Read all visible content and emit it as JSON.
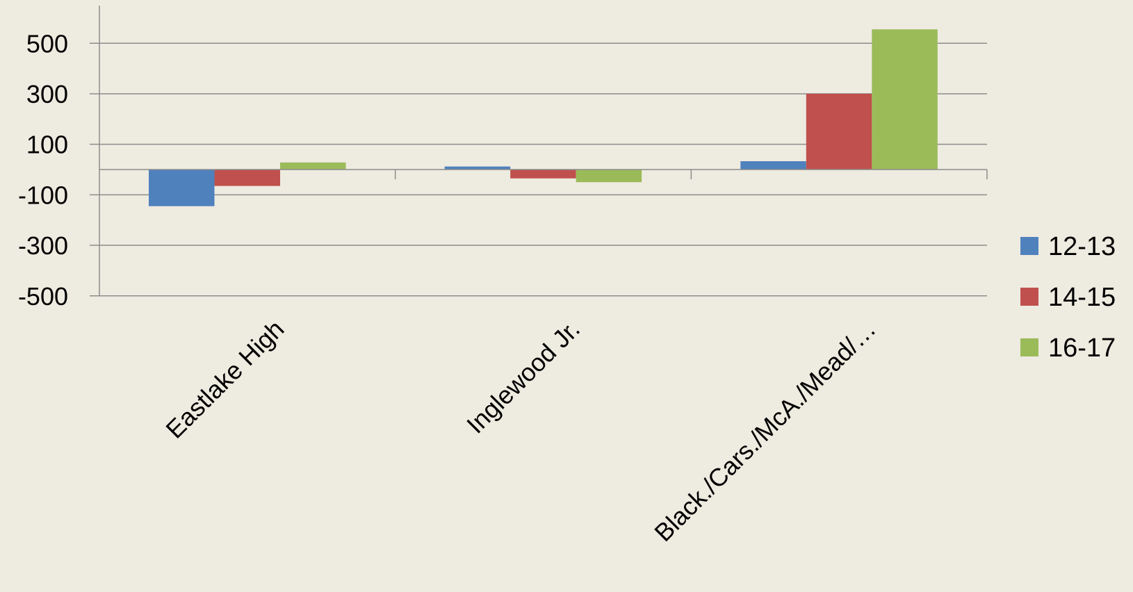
{
  "chart_data": {
    "type": "bar",
    "title": "",
    "xlabel": "",
    "ylabel": "",
    "categories": [
      "Eastlake High",
      "Inglewood Jr.",
      "Black./Cars./McA./Mead/…"
    ],
    "series": [
      {
        "name": "12-13",
        "color": "#4f81bd",
        "values": [
          -145,
          12,
          33
        ]
      },
      {
        "name": "14-15",
        "color": "#c0504d",
        "values": [
          -65,
          -35,
          300
        ]
      },
      {
        "name": "16-17",
        "color": "#9bbb59",
        "values": [
          28,
          -50,
          555
        ]
      }
    ],
    "ylim": [
      -500,
      650
    ],
    "yticks": [
      500,
      300,
      100,
      -100,
      -300,
      -500
    ],
    "grid": true,
    "legend": "right"
  }
}
